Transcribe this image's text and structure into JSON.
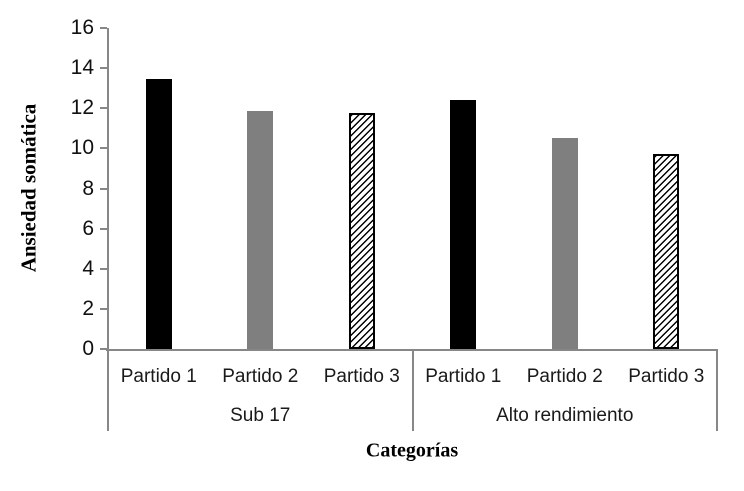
{
  "chart_data": {
    "type": "bar",
    "title": "",
    "ylabel": "Ansiedad somática",
    "xlabel": "Categorías",
    "ylim": [
      0,
      16
    ],
    "yticks": [
      0,
      2,
      4,
      6,
      8,
      10,
      12,
      14,
      16
    ],
    "grid": false,
    "legend": false,
    "axis_color": "#878787",
    "background_color": "#ffffff",
    "groups": [
      {
        "label": "Sub 17",
        "categories": [
          "Partido 1",
          "Partido 2",
          "Partido 3"
        ],
        "values": [
          13.45,
          11.85,
          11.75
        ]
      },
      {
        "label": "Alto rendimiento",
        "categories": [
          "Partido 1",
          "Partido 2",
          "Partido 3"
        ],
        "values": [
          12.4,
          10.5,
          9.7
        ]
      }
    ],
    "series_styles": [
      {
        "slot": 1,
        "style": "solid",
        "fill": "#000000"
      },
      {
        "slot": 2,
        "style": "solid",
        "fill": "#7f7f7f"
      },
      {
        "slot": 3,
        "style": "diagonal-hatch",
        "fill": "#ffffff",
        "stripe_color": "#000000",
        "border_color": "#000000"
      }
    ]
  }
}
